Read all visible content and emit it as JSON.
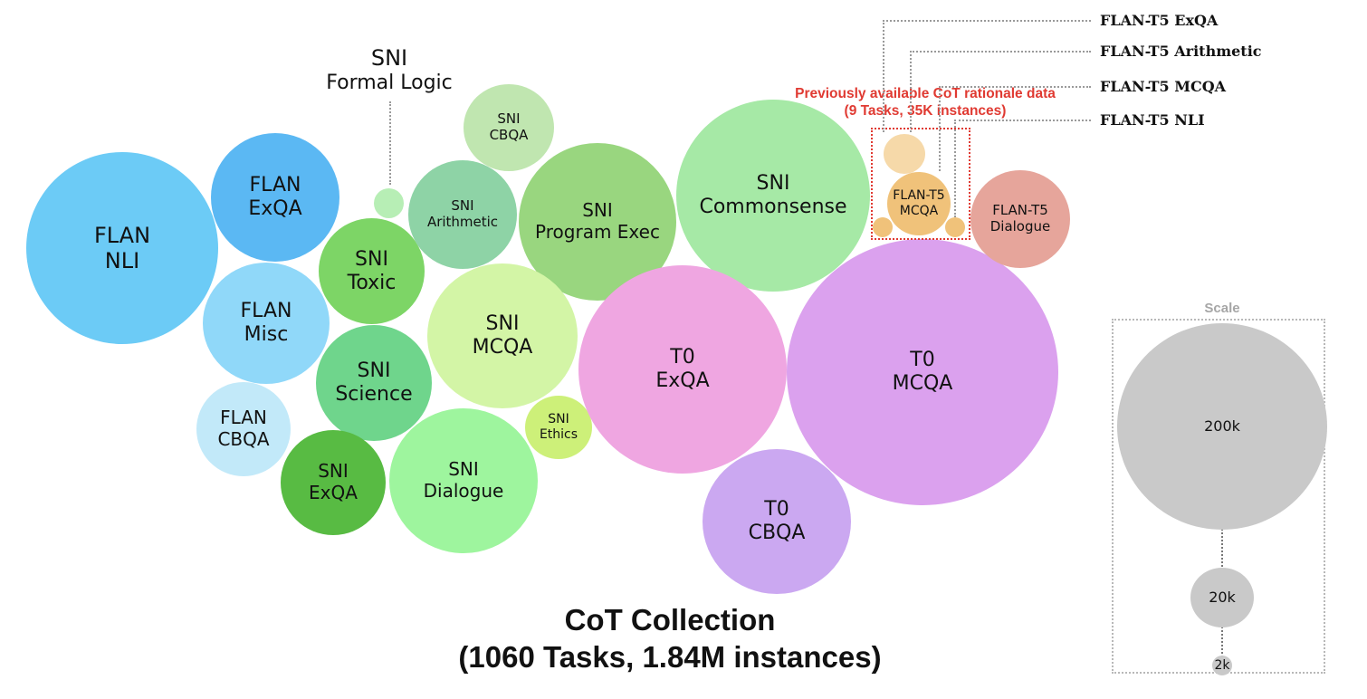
{
  "diagram": {
    "bubbles": [
      {
        "id": "flan-nli",
        "lines": [
          "FLAN",
          "NLI"
        ],
        "color": "#6ccbf6"
      },
      {
        "id": "flan-exqa",
        "lines": [
          "FLAN",
          "ExQA"
        ],
        "color": "#5bb8f3"
      },
      {
        "id": "flan-misc",
        "lines": [
          "FLAN",
          "Misc"
        ],
        "color": "#90d8f9"
      },
      {
        "id": "flan-cbqa",
        "lines": [
          "FLAN",
          "CBQA"
        ],
        "color": "#c2e9f9"
      },
      {
        "id": "sni-formal-logic",
        "lines": [],
        "color": "#b7eeb5"
      },
      {
        "id": "sni-toxic",
        "lines": [
          "SNI",
          "Toxic"
        ],
        "color": "#7dd566"
      },
      {
        "id": "sni-science",
        "lines": [
          "SNI",
          "Science"
        ],
        "color": "#6fd58c"
      },
      {
        "id": "sni-exqa",
        "lines": [
          "SNI",
          "ExQA"
        ],
        "color": "#58bb43"
      },
      {
        "id": "sni-cbqa",
        "lines": [
          "SNI",
          "CBQA"
        ],
        "color": "#c0e6b0"
      },
      {
        "id": "sni-arithmetic",
        "lines": [
          "SNI",
          "Arithmetic"
        ],
        "color": "#8ed3a6"
      },
      {
        "id": "sni-program-exec",
        "lines": [
          "SNI",
          "Program Exec"
        ],
        "color": "#99d67f"
      },
      {
        "id": "sni-mcqa",
        "lines": [
          "SNI",
          "MCQA"
        ],
        "color": "#d3f5a6"
      },
      {
        "id": "sni-dialogue",
        "lines": [
          "SNI",
          "Dialogue"
        ],
        "color": "#9ef59e"
      },
      {
        "id": "sni-ethics",
        "lines": [
          "SNI",
          "Ethics"
        ],
        "color": "#cdf079"
      },
      {
        "id": "sni-commonsense",
        "lines": [
          "SNI",
          "Commonsense"
        ],
        "color": "#a6e9a6"
      },
      {
        "id": "t0-exqa",
        "lines": [
          "T0",
          "ExQA"
        ],
        "color": "#efa6e1"
      },
      {
        "id": "t0-mcqa",
        "lines": [
          "T0",
          "MCQA"
        ],
        "color": "#dba1ee"
      },
      {
        "id": "t0-cbqa",
        "lines": [
          "T0",
          "CBQA"
        ],
        "color": "#cba8f1"
      },
      {
        "id": "flan-t5-dialogue",
        "lines": [
          "FLAN-T5",
          "Dialogue"
        ],
        "color": "#e6a59b"
      },
      {
        "id": "flan-t5-mcqa",
        "lines": [
          "FLAN-T5",
          "MCQA"
        ],
        "color": "#f0c27a"
      },
      {
        "id": "flan-t5-exqa",
        "lines": [],
        "color": "#f6d9a9"
      },
      {
        "id": "flan-t5-arithmetic",
        "lines": [],
        "color": "#f0c27a"
      },
      {
        "id": "flan-t5-nli",
        "lines": [],
        "color": "#f0c27a"
      }
    ],
    "sni_formal_logic_label": [
      "SNI",
      "Formal Logic"
    ],
    "callouts": {
      "flan_t5_exqa": "FLAN-T5 ExQA",
      "flan_t5_arithmetic": "FLAN-T5 Arithmetic",
      "flan_t5_mcqa": "FLAN-T5 MCQA",
      "flan_t5_nli": "FLAN-T5 NLI"
    },
    "previous_data": {
      "line1": "Previously available CoT rationale data",
      "line2": "(9 Tasks, 35K instances)",
      "color": "#e03a32"
    },
    "title": {
      "line1": "CoT Collection",
      "line2": "(1060 Tasks, 1.84M instances)"
    },
    "scale": {
      "title": "Scale",
      "labels": [
        "200k",
        "20k",
        "2k"
      ],
      "color": "#c9c9c9"
    }
  }
}
